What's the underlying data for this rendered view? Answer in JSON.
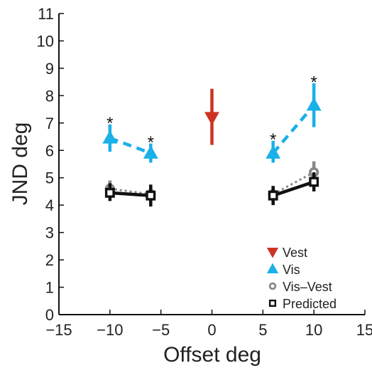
{
  "chart_data": {
    "type": "scatter",
    "xlabel": "Offset deg",
    "ylabel": "JND deg",
    "xlim": [
      -15,
      15
    ],
    "ylim": [
      0,
      11
    ],
    "xticks": [
      -15,
      -10,
      -5,
      0,
      5,
      10,
      15
    ],
    "xtick_labels": [
      "−15",
      "−10",
      "−5",
      "0",
      "5",
      "10",
      "15"
    ],
    "yticks": [
      0,
      1,
      2,
      3,
      4,
      5,
      6,
      7,
      8,
      9,
      10,
      11
    ],
    "grid": false,
    "legend_position": "bottom-right",
    "legend": [
      {
        "key": "vest",
        "label": "Vest",
        "marker": "triangle-down",
        "color": "#cc3322"
      },
      {
        "key": "vis",
        "label": "Vis",
        "marker": "triangle-up",
        "color": "#1ab0e8"
      },
      {
        "key": "combined",
        "label": "Vis–Vest",
        "marker": "circle-open",
        "color": "#888888"
      },
      {
        "key": "predicted",
        "label": "Predicted",
        "marker": "square-open",
        "color": "#111111"
      }
    ],
    "series": [
      {
        "key": "vest",
        "color": "#cc3322",
        "marker": "triangle-down",
        "line": "none",
        "points": [
          {
            "x": 0,
            "y": 7.2,
            "err_low": 6.2,
            "err_high": 8.25
          }
        ]
      },
      {
        "key": "vis",
        "color": "#1ab0e8",
        "marker": "triangle-up",
        "line": "dashed",
        "segments": [
          [
            0,
            1
          ],
          [
            2,
            3
          ]
        ],
        "points": [
          {
            "x": -10,
            "y": 6.45,
            "err_low": 5.95,
            "err_high": 6.95
          },
          {
            "x": -6,
            "y": 5.9,
            "err_low": 5.55,
            "err_high": 6.25
          },
          {
            "x": 6,
            "y": 5.9,
            "err_low": 5.55,
            "err_high": 6.35
          },
          {
            "x": 10,
            "y": 7.65,
            "err_low": 6.85,
            "err_high": 8.45
          }
        ]
      },
      {
        "key": "combined",
        "color": "#888888",
        "marker": "circle-open",
        "line": "dotted",
        "segments": [
          [
            0,
            1
          ],
          [
            2,
            3
          ]
        ],
        "points": [
          {
            "x": -10,
            "y": 4.6,
            "err_low": 4.3,
            "err_high": 4.9
          },
          {
            "x": -6,
            "y": 4.4,
            "err_low": 4.1,
            "err_high": 4.7
          },
          {
            "x": 6,
            "y": 4.4,
            "err_low": 4.1,
            "err_high": 4.7
          },
          {
            "x": 10,
            "y": 5.2,
            "err_low": 4.8,
            "err_high": 5.6
          }
        ]
      },
      {
        "key": "predicted",
        "color": "#111111",
        "marker": "square-open",
        "line": "solid",
        "segments": [
          [
            0,
            1
          ],
          [
            2,
            3
          ]
        ],
        "points": [
          {
            "x": -10,
            "y": 4.45,
            "err_low": 4.15,
            "err_high": 4.8
          },
          {
            "x": -6,
            "y": 4.35,
            "err_low": 3.95,
            "err_high": 4.75
          },
          {
            "x": 6,
            "y": 4.35,
            "err_low": 4.0,
            "err_high": 4.7
          },
          {
            "x": 10,
            "y": 4.85,
            "err_low": 4.5,
            "err_high": 5.2
          }
        ]
      }
    ],
    "annotations": [
      {
        "text": "*",
        "x": -10,
        "y": 7.1
      },
      {
        "text": "*",
        "x": -6,
        "y": 6.4
      },
      {
        "text": "*",
        "x": 6,
        "y": 6.5
      },
      {
        "text": "*",
        "x": 10,
        "y": 8.6
      }
    ]
  }
}
